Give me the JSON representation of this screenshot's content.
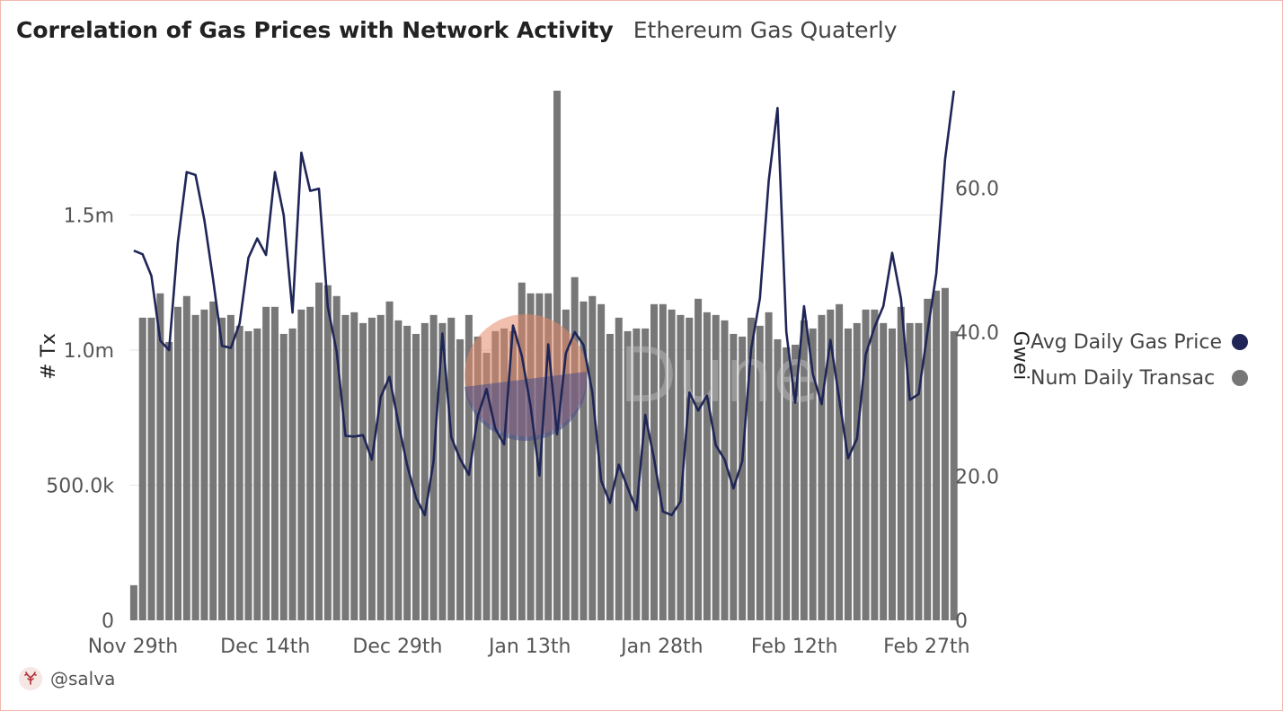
{
  "header": {
    "title": "Correlation of Gas Prices with Network Activity",
    "subtitle": "Ethereum Gas Quaterly"
  },
  "footer": {
    "author": "@salva",
    "avatar_icon": "user-avatar-icon"
  },
  "watermark": "Dune",
  "colors": {
    "bars": "#777777",
    "line": "#1f2657",
    "grid": "#e6e6e6",
    "frame": "#f0b8ac"
  },
  "chart_data": {
    "type": "bar+line",
    "x_tick_labels": [
      "Nov 29th",
      "Dec 14th",
      "Dec 29th",
      "Jan 13th",
      "Jan 28th",
      "Feb 12th",
      "Feb 27th"
    ],
    "x_start": "2023-11-29",
    "x_end": "2024-02-29",
    "y_left": {
      "label": "# Tx",
      "tick_labels": [
        "0",
        "500.0k",
        "1.0m",
        "1.5m"
      ],
      "ticks": [
        0,
        500000,
        1000000,
        1500000
      ],
      "range": [
        0,
        1960000
      ]
    },
    "y_right": {
      "label": "Gwei",
      "tick_labels": [
        "0",
        "20.0",
        "40.0",
        "60.0"
      ],
      "ticks": [
        0,
        20,
        40,
        60
      ],
      "range": [
        0,
        73.5
      ]
    },
    "legend_position": "right",
    "series": [
      {
        "name": "Avg Daily Gas Price",
        "axis": "right",
        "kind": "line",
        "color": "#1f2657",
        "values": [
          51.3,
          50.8,
          47.8,
          38.8,
          37.5,
          52.5,
          62.2,
          61.8,
          55.6,
          47.3,
          38.1,
          37.8,
          41.2,
          50.3,
          53.0,
          50.7,
          62.2,
          56.2,
          42.7,
          64.9,
          59.6,
          59.9,
          43.5,
          37.3,
          25.6,
          25.5,
          25.7,
          22.3,
          31.0,
          33.8,
          27.4,
          21.5,
          17.0,
          14.6,
          22.1,
          39.8,
          25.4,
          22.4,
          20.2,
          28.3,
          32.1,
          26.6,
          24.4,
          40.9,
          36.7,
          29.7,
          20.1,
          38.3,
          25.8,
          37.1,
          40.0,
          38.2,
          31.6,
          19.4,
          16.3,
          21.6,
          18.4,
          15.3,
          28.5,
          22.4,
          15.1,
          14.6,
          16.5,
          31.6,
          29.1,
          31.2,
          24.3,
          22.3,
          18.3,
          22.1,
          37.6,
          44.7,
          61.0,
          71.1,
          40.0,
          30.2,
          43.6,
          34.2,
          30.0,
          38.9,
          30.7,
          22.5,
          25.2,
          36.9,
          40.7,
          43.6,
          51.0,
          44.6,
          30.6,
          31.4,
          40.0,
          48.1,
          64.0,
          73.5
        ]
      },
      {
        "name": "Num Daily Transac",
        "axis": "left",
        "kind": "bar",
        "color": "#777777",
        "values": [
          130000,
          1120000,
          1120000,
          1210000,
          1030000,
          1160000,
          1200000,
          1130000,
          1150000,
          1180000,
          1120000,
          1130000,
          1090000,
          1070000,
          1080000,
          1160000,
          1160000,
          1060000,
          1080000,
          1150000,
          1160000,
          1250000,
          1240000,
          1200000,
          1130000,
          1140000,
          1100000,
          1120000,
          1130000,
          1180000,
          1110000,
          1090000,
          1060000,
          1100000,
          1130000,
          1100000,
          1120000,
          1040000,
          1130000,
          1050000,
          990000,
          1070000,
          1080000,
          1070000,
          1250000,
          1210000,
          1210000,
          1210000,
          1960000,
          1150000,
          1270000,
          1180000,
          1200000,
          1170000,
          1060000,
          1120000,
          1070000,
          1080000,
          1080000,
          1170000,
          1170000,
          1150000,
          1130000,
          1120000,
          1190000,
          1140000,
          1130000,
          1110000,
          1060000,
          1050000,
          1120000,
          1090000,
          1140000,
          1040000,
          1010000,
          1020000,
          1110000,
          1080000,
          1130000,
          1150000,
          1170000,
          1080000,
          1100000,
          1150000,
          1150000,
          1100000,
          1080000,
          1160000,
          1100000,
          1100000,
          1190000,
          1220000,
          1230000,
          1070000
        ]
      }
    ]
  }
}
